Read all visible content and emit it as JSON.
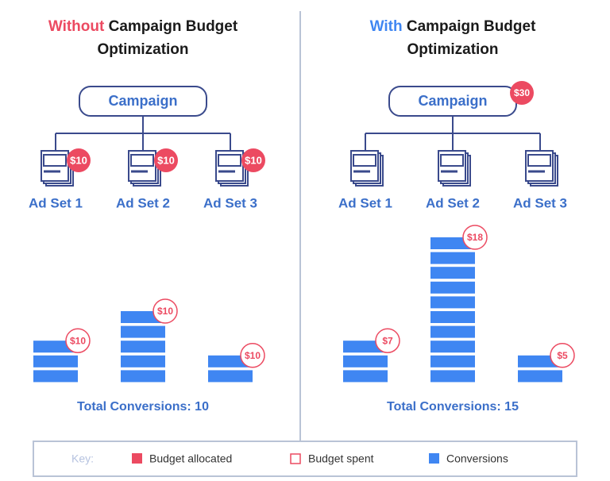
{
  "panels": [
    {
      "title_highlight": "Without",
      "title_rest": "Campaign Budget",
      "title_line2": "Optimization",
      "highlight_color": "#ec4a61",
      "campaign": "Campaign",
      "ad_sets": [
        {
          "label": "Ad Set 1",
          "allocated": "$10",
          "spent": "$10",
          "conversions": 3
        },
        {
          "label": "Ad Set 2",
          "allocated": "$10",
          "spent": "$10",
          "conversions": 5
        },
        {
          "label": "Ad Set 3",
          "allocated": "$10",
          "spent": "$10",
          "conversions": 2
        }
      ],
      "total": "Total Conversions: 10"
    },
    {
      "title_highlight": "With",
      "title_rest": "Campaign Budget",
      "title_line2": "Optimization",
      "highlight_color": "#3f86f2",
      "campaign": "Campaign",
      "campaign_badge": "$30",
      "ad_sets": [
        {
          "label": "Ad Set 1",
          "spent": "$7",
          "conversions": 3
        },
        {
          "label": "Ad Set 2",
          "spent": "$18",
          "conversions": 10
        },
        {
          "label": "Ad Set 3",
          "spent": "$5",
          "conversions": 2
        }
      ],
      "total": "Total Conversions: 15"
    }
  ],
  "key": {
    "label": "Key:",
    "items": [
      "Budget allocated",
      "Budget spent",
      "Conversions"
    ]
  }
}
